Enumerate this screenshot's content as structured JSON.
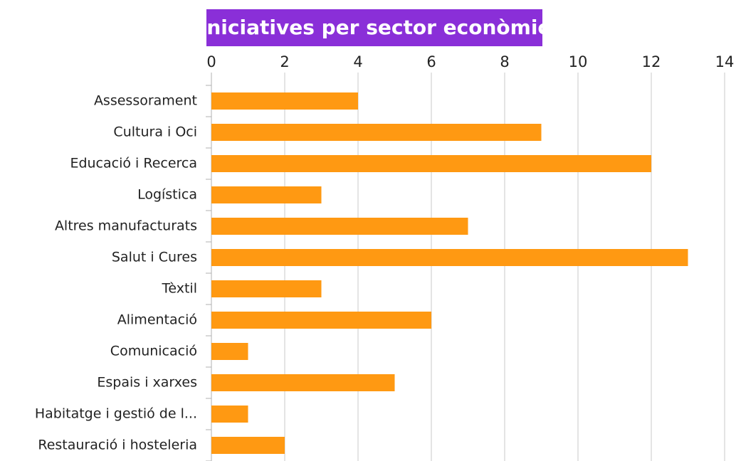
{
  "chart_data": {
    "type": "bar",
    "orientation": "horizontal",
    "title": "Iniciatives per sector econòmic",
    "categories": [
      "Assessorament",
      "Cultura i Oci",
      "Educació i Recerca",
      "Logística",
      "Altres manufacturats",
      "Salut i Cures",
      "Tèxtil",
      "Alimentació",
      "Comunicació",
      "Espais i xarxes",
      "Habitatge i gestió de l...",
      "Restauració i hosteleria"
    ],
    "values": [
      4,
      9,
      12,
      3,
      7,
      13,
      3,
      6,
      1,
      5,
      1,
      2
    ],
    "color": "#ff9912",
    "xlim": [
      0,
      14
    ],
    "xticks": [
      0,
      2,
      4,
      6,
      8,
      10,
      12,
      14
    ],
    "grid": true
  }
}
